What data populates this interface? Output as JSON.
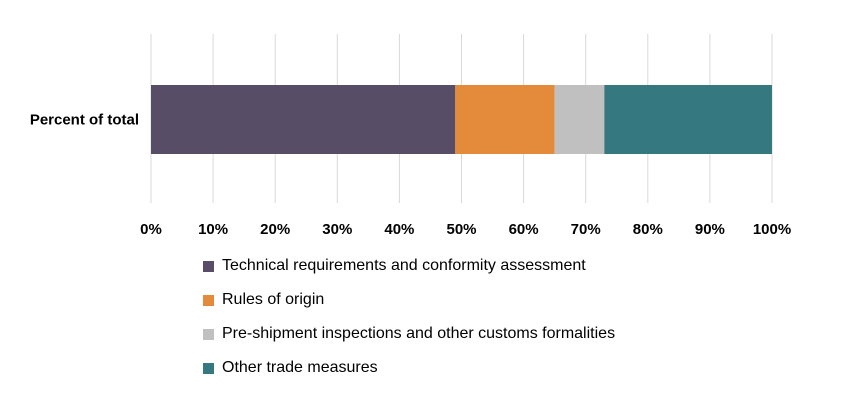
{
  "chart_data": {
    "type": "bar",
    "orientation": "horizontal",
    "stacked": true,
    "categories": [
      "Percent of total"
    ],
    "series": [
      {
        "name": "Technical requirements and conformity assessment",
        "values": [
          49
        ],
        "color": "#574d66"
      },
      {
        "name": "Rules of origin",
        "values": [
          16
        ],
        "color": "#e38a3b"
      },
      {
        "name": "Pre-shipment inspections and other customs formalities",
        "values": [
          8
        ],
        "color": "#c0c0c0"
      },
      {
        "name": "Other trade measures",
        "values": [
          27
        ],
        "color": "#367880"
      }
    ],
    "xlim": [
      0,
      100
    ],
    "xticks": [
      0,
      10,
      20,
      30,
      40,
      50,
      60,
      70,
      80,
      90,
      100
    ],
    "xtick_labels": [
      "0%",
      "10%",
      "20%",
      "30%",
      "40%",
      "50%",
      "60%",
      "70%",
      "80%",
      "90%",
      "100%"
    ],
    "grid": "vertical",
    "legend_position": "bottom"
  }
}
